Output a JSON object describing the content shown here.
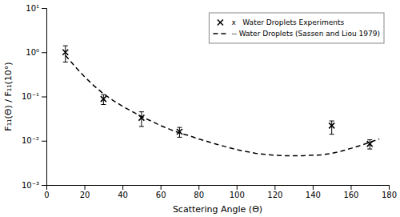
{
  "chart_data": {
    "type": "line",
    "xlabel": "Scattering Angle (Θ)",
    "ylabel": "F₁₁(Θ) / F₁₁(10°)",
    "log": "y",
    "legend": "upper right",
    "xlim": [
      0,
      180
    ],
    "ylim": [
      0.001,
      10
    ],
    "xticks": [
      0,
      20,
      40,
      60,
      80,
      100,
      120,
      140,
      160,
      180
    ],
    "yticks": [
      {
        "value": 0.001,
        "label": "10⁻³"
      },
      {
        "value": 0.01,
        "label": "10⁻²"
      },
      {
        "value": 0.1,
        "label": "10⁻¹"
      },
      {
        "value": 1.0,
        "label": "10⁰"
      },
      {
        "value": 10,
        "label": "10¹"
      }
    ],
    "series": [
      {
        "name": "x   Water Droplets Experiments",
        "type": "scatter",
        "marker": "x",
        "color": "black",
        "x": [
          10,
          30,
          50,
          70,
          150,
          170
        ],
        "values": [
          1.0,
          0.088,
          0.033,
          0.016,
          0.022,
          0.0085
        ],
        "error_low": [
          0.4,
          0.022,
          0.012,
          0.004,
          0.008,
          0.002
        ],
        "error_high": [
          0.4,
          0.022,
          0.012,
          0.004,
          0.006,
          0.002
        ]
      },
      {
        "name": "-- Water Droplets (Sassen and Liou 1979)",
        "type": "line",
        "line_style": "dashed",
        "color": "black",
        "x": [
          10,
          15,
          20,
          25,
          30,
          35,
          40,
          45,
          50,
          55,
          60,
          65,
          70,
          75,
          80,
          85,
          90,
          95,
          100,
          105,
          110,
          115,
          120,
          125,
          130,
          135,
          140,
          145,
          150,
          155,
          160,
          165,
          170,
          175
        ],
        "values": [
          0.85,
          0.48,
          0.28,
          0.175,
          0.115,
          0.082,
          0.06,
          0.046,
          0.035,
          0.028,
          0.022,
          0.018,
          0.015,
          0.013,
          0.011,
          0.0095,
          0.0082,
          0.0072,
          0.0063,
          0.0057,
          0.0052,
          0.0049,
          0.0047,
          0.0046,
          0.0046,
          0.0046,
          0.0047,
          0.0048,
          0.0052,
          0.0058,
          0.0067,
          0.0078,
          0.0092,
          0.011
        ]
      }
    ]
  }
}
